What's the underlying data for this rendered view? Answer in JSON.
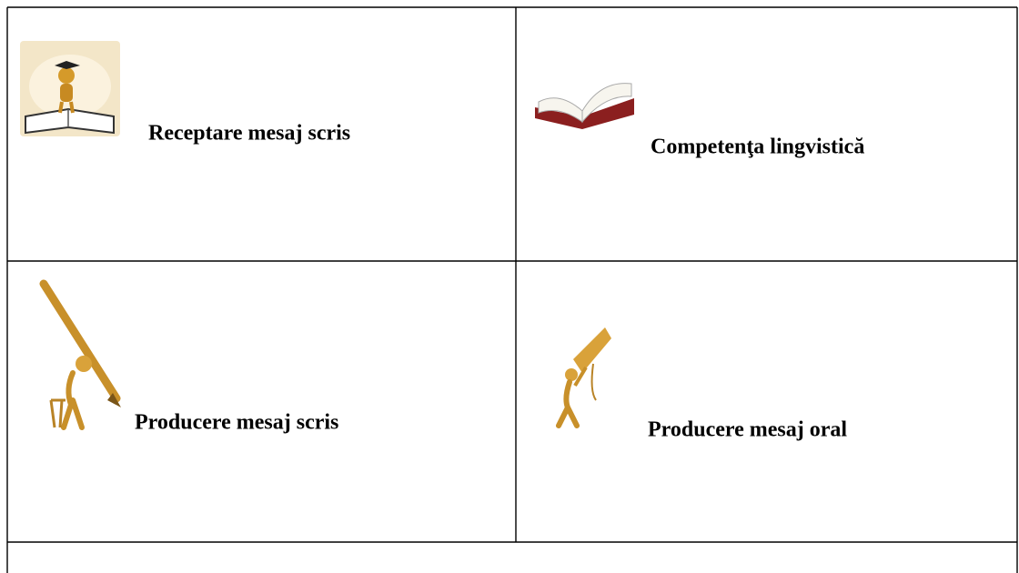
{
  "table": {
    "rows": [
      [
        "Receptare mesaj scris",
        "Competenţa lingvistică"
      ],
      [
        "Producere mesaj scris",
        "Producere mesaj oral"
      ]
    ]
  }
}
